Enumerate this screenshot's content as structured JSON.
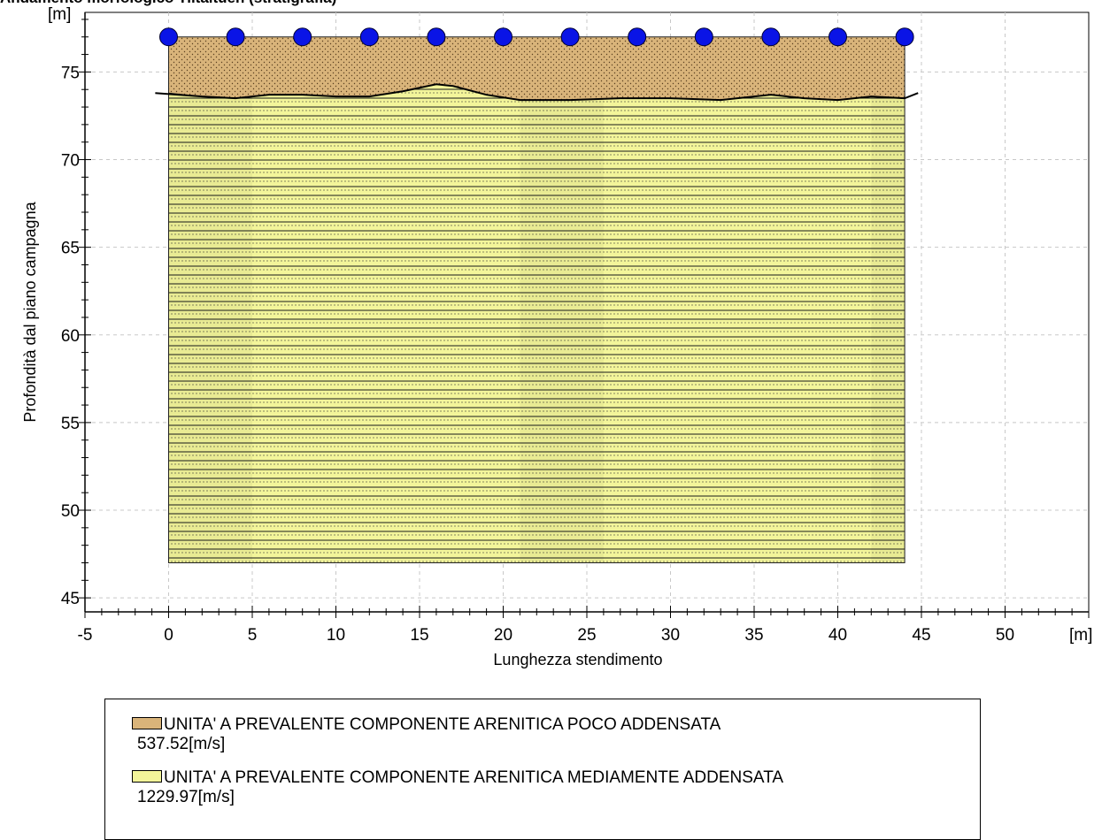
{
  "page": {
    "title": "Andamento morfologico Tiltaltuen (stratigrafia)"
  },
  "chart_data": {
    "type": "area",
    "xlabel": "Lunghezza stendimento",
    "ylabel": "Profondità dal piano campagna",
    "x_unit": "[m]",
    "y_unit": "[m]",
    "xlim": [
      -5,
      55
    ],
    "ylim": [
      44.2,
      78.4
    ],
    "x_ticks": [
      -5,
      0,
      5,
      10,
      15,
      20,
      25,
      30,
      35,
      40,
      45,
      50
    ],
    "y_ticks": [
      45,
      50,
      55,
      60,
      65,
      70,
      75
    ],
    "grid": true,
    "legend_position": "bottom",
    "geophones": {
      "x": [
        0,
        4,
        8,
        12,
        16,
        20,
        24,
        28,
        32,
        36,
        40,
        44
      ],
      "y": 77.0,
      "color": "#0a14e6"
    },
    "layers": [
      {
        "name": "UNITA' A PREVALENTE COMPONENTE ARENITICA POCO ADDENSATA",
        "velocity": "537.52[m/s]",
        "color": "#d9b47a",
        "top": 77.0,
        "bottom_profile": {
          "x": [
            -0.8,
            2,
            4,
            6,
            8,
            10,
            12,
            14,
            16,
            17,
            19,
            21,
            24,
            27,
            30,
            33,
            35,
            36,
            38,
            40,
            42,
            44,
            44.8
          ],
          "y": [
            73.8,
            73.6,
            73.5,
            73.7,
            73.7,
            73.6,
            73.6,
            73.9,
            74.3,
            74.2,
            73.7,
            73.4,
            73.4,
            73.5,
            73.5,
            73.4,
            73.6,
            73.7,
            73.5,
            73.4,
            73.6,
            73.5,
            73.8
          ]
        }
      },
      {
        "name": "UNITA' A PREVALENTE COMPONENTE ARENITICA MEDIAMENTE ADDENSATA",
        "velocity": "1229.97[m/s]",
        "color": "#f3f59a",
        "bottom": 47.0
      }
    ],
    "x_extent": [
      0,
      44
    ]
  }
}
